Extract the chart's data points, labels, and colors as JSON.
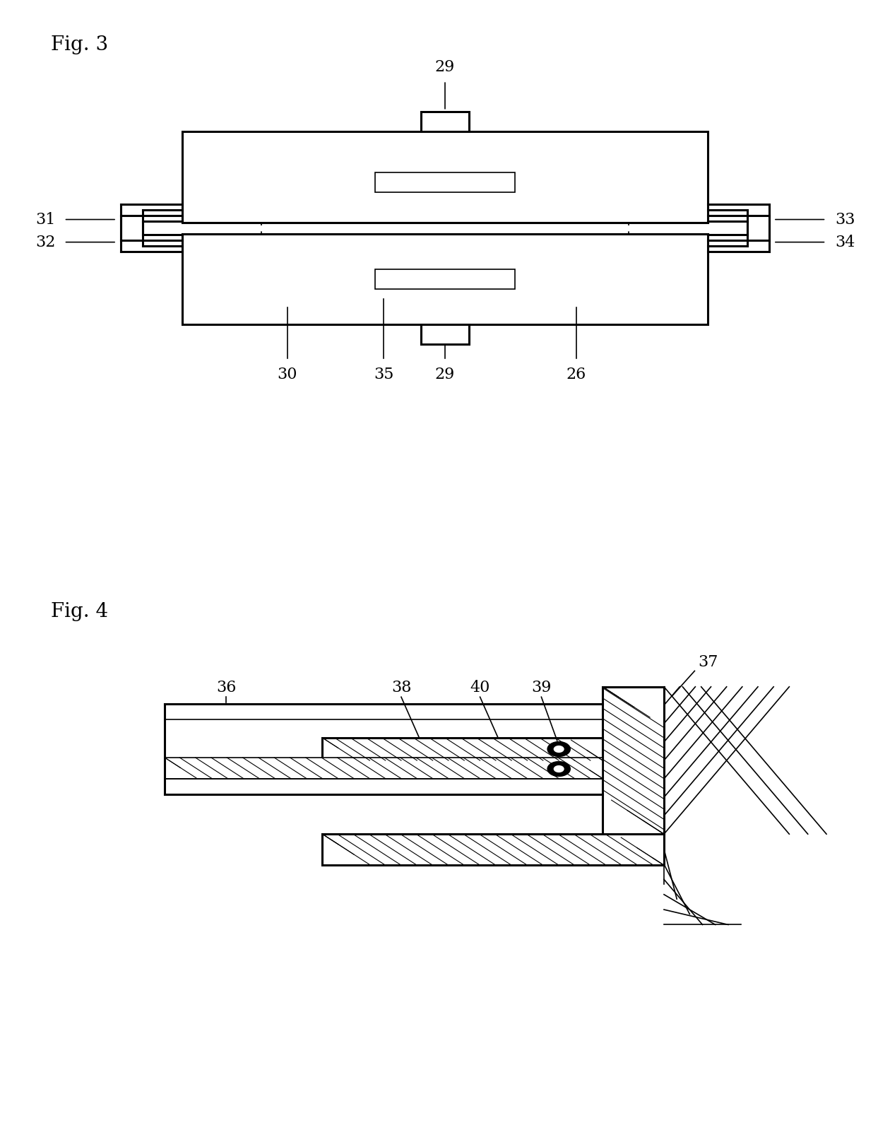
{
  "fig3_title": "Fig. 3",
  "fig4_title": "Fig. 4",
  "bg_color": "#ffffff",
  "line_color": "#000000",
  "lw": 2.2,
  "lw_thin": 1.2
}
